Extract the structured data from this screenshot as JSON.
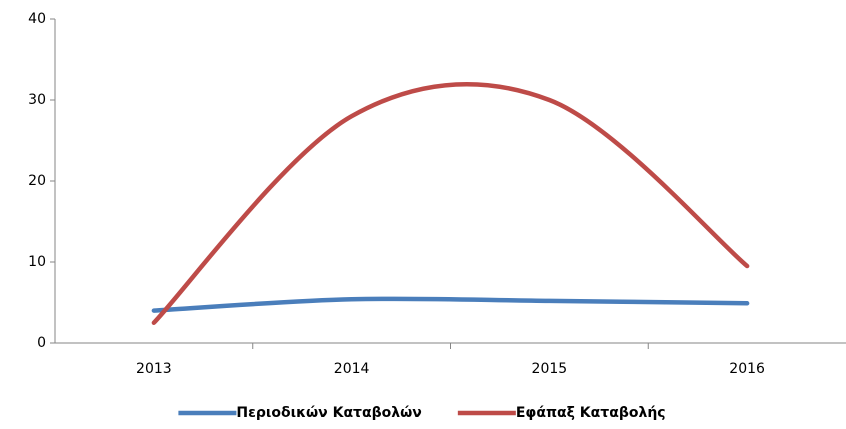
{
  "chart_data": {
    "type": "line",
    "categories": [
      "2013",
      "2014",
      "2015",
      "2016"
    ],
    "series": [
      {
        "name": "Περιοδικών Καταβολών",
        "color": "#4a7ebb",
        "values": [
          4,
          5.4,
          5.2,
          4.9
        ]
      },
      {
        "name": "Εφάπαξ Καταβολής",
        "color": "#be4b48",
        "values": [
          2.5,
          28,
          30,
          9.5
        ]
      }
    ],
    "ylim": [
      0,
      40
    ],
    "yticks": [
      0,
      10,
      20,
      30,
      40
    ],
    "smooth": true,
    "grid": false,
    "legend": "bottom"
  }
}
